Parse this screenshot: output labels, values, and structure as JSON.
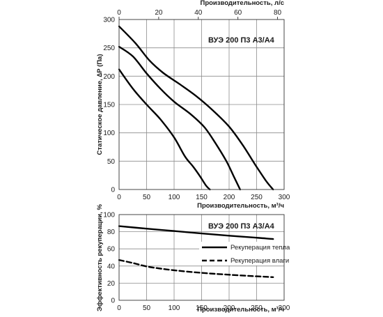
{
  "colors": {
    "line": "#000000",
    "grid": "#8c8c8c",
    "frame": "#333333"
  },
  "chart_data": [
    {
      "type": "line",
      "title": "ВУЭ 200 П3 А3/А4",
      "xlabel": "Производительность, м³/ч",
      "ylabel": "Статическое давление, ∆P (Па)",
      "x2label": "Производительность, л/с",
      "xlim": [
        0,
        300
      ],
      "ylim": [
        0,
        300
      ],
      "x2lim": [
        0,
        83.33
      ],
      "xticks": [
        0,
        50,
        100,
        150,
        200,
        250,
        300
      ],
      "yticks": [
        0,
        50,
        100,
        150,
        200,
        250,
        300
      ],
      "x2ticks": [
        0,
        20,
        40,
        60,
        80
      ],
      "grid": true,
      "series": [
        {
          "x": [
            0,
            25,
            50,
            75,
            100,
            120,
            135,
            148,
            158,
            165
          ],
          "y": [
            212,
            178,
            150,
            124,
            92,
            58,
            40,
            22,
            7,
            0
          ]
        },
        {
          "x": [
            0,
            25,
            50,
            75,
            100,
            130,
            155,
            175,
            195,
            210,
            220
          ],
          "y": [
            252,
            235,
            205,
            178,
            155,
            133,
            110,
            82,
            50,
            20,
            0
          ]
        },
        {
          "x": [
            0,
            30,
            55,
            80,
            110,
            140,
            170,
            200,
            225,
            250,
            268,
            280
          ],
          "y": [
            288,
            258,
            228,
            206,
            186,
            165,
            140,
            111,
            78,
            40,
            14,
            0
          ]
        }
      ]
    },
    {
      "type": "line",
      "title": "ВУЭ 200 П3 А3/А4",
      "xlabel": "Производительность, м³/ч",
      "ylabel": "Эффективность рекуперации, %",
      "xlim": [
        0,
        300
      ],
      "ylim": [
        0,
        100
      ],
      "xticks": [
        0,
        50,
        100,
        150,
        200,
        250,
        300
      ],
      "yticks": [
        0,
        20,
        40,
        60,
        80,
        100
      ],
      "grid": true,
      "legend": "right",
      "series": [
        {
          "name": "Рекуперация тепла",
          "style": "solid",
          "x": [
            0,
            50,
            100,
            150,
            200,
            250,
            280
          ],
          "y": [
            86.5,
            83.6,
            80.8,
            78.0,
            75.4,
            73.0,
            71.5
          ]
        },
        {
          "name": "Рекуперация влаги",
          "style": "dashed",
          "x": [
            0,
            25,
            50,
            75,
            100,
            150,
            200,
            250,
            280
          ],
          "y": [
            47,
            43.5,
            39.5,
            37,
            35,
            32,
            29.8,
            28,
            27
          ]
        }
      ]
    }
  ]
}
